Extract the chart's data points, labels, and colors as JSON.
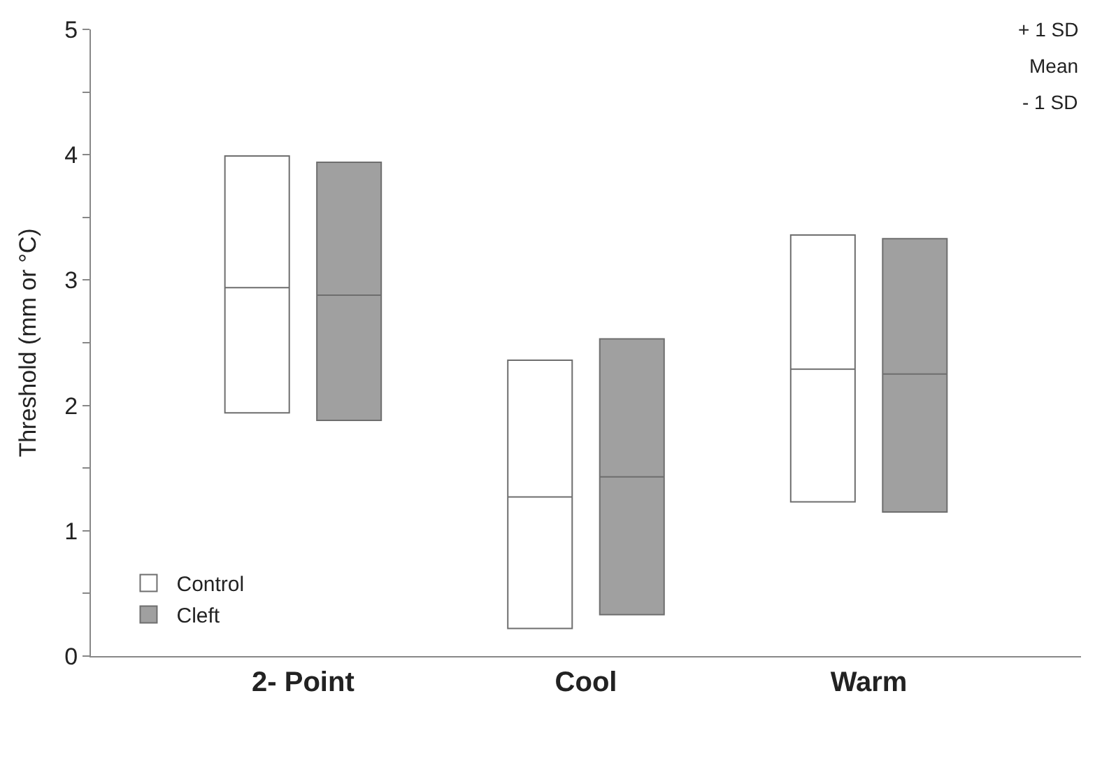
{
  "chart_data": {
    "type": "box",
    "ylabel": "Threshold (mm or °C)",
    "categories": [
      "2- Point",
      "Cool",
      "Warm"
    ],
    "series": [
      {
        "name": "Control",
        "color": "#ffffff",
        "boxes": [
          {
            "low": 1.94,
            "q1": 1.94,
            "median": 2.94,
            "q3": 3.99,
            "high": 3.99
          },
          {
            "low": 0.22,
            "q1": 0.22,
            "median": 1.27,
            "q3": 2.36,
            "high": 2.36
          },
          {
            "low": 1.23,
            "q1": 1.23,
            "median": 2.29,
            "q3": 3.36,
            "high": 3.36
          }
        ]
      },
      {
        "name": "Cleft",
        "color": "#a0a0a0",
        "boxes": [
          {
            "low": 1.88,
            "q1": 1.88,
            "median": 2.88,
            "q3": 3.94,
            "high": 3.94
          },
          {
            "low": 0.33,
            "q1": 0.33,
            "median": 1.43,
            "q3": 2.53,
            "high": 2.53
          },
          {
            "low": 1.15,
            "q1": 1.15,
            "median": 2.25,
            "q3": 3.33,
            "high": 3.33
          }
        ]
      }
    ],
    "ylim": [
      0,
      5
    ],
    "yticks": [
      0,
      {
        "value": 0.5,
        "label": null
      },
      1,
      {
        "value": 1.5,
        "label": null
      },
      2,
      {
        "value": 2.5,
        "label": null
      },
      3,
      {
        "value": 3.5,
        "label": null
      },
      4,
      {
        "value": 4.5,
        "label": null
      },
      5
    ],
    "grid": false,
    "legend": "bottom left",
    "annotations": [
      "+ 1 SD",
      "Mean",
      "- 1 SD"
    ]
  }
}
